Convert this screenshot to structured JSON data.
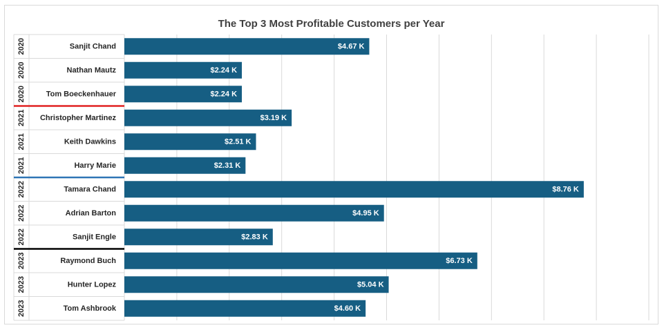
{
  "chart_data": {
    "type": "bar",
    "orientation": "horizontal",
    "title": "The Top 3 Most Profitable Customers per Year",
    "xlim": [
      0,
      10
    ],
    "grid": true,
    "bar_color": "#165E83",
    "categories": [
      {
        "year": "2020",
        "customer": "Sanjit Chand"
      },
      {
        "year": "2020",
        "customer": "Nathan Mautz"
      },
      {
        "year": "2020",
        "customer": "Tom Boeckenhauer"
      },
      {
        "year": "2021",
        "customer": "Christopher Martinez"
      },
      {
        "year": "2021",
        "customer": "Keith Dawkins"
      },
      {
        "year": "2021",
        "customer": "Harry Marie"
      },
      {
        "year": "2022",
        "customer": "Tamara Chand"
      },
      {
        "year": "2022",
        "customer": "Adrian Barton"
      },
      {
        "year": "2022",
        "customer": "Sanjit Engle"
      },
      {
        "year": "2023",
        "customer": "Raymond Buch"
      },
      {
        "year": "2023",
        "customer": "Hunter Lopez"
      },
      {
        "year": "2023",
        "customer": "Tom Ashbrook"
      }
    ],
    "values": [
      4.67,
      2.24,
      2.24,
      3.19,
      2.51,
      2.31,
      8.76,
      4.95,
      2.83,
      6.73,
      5.04,
      4.6
    ],
    "data_labels": [
      "$4.67 K",
      "$2.24 K",
      "$2.24 K",
      "$3.19 K",
      "$2.51 K",
      "$2.31 K",
      "$8.76 K",
      "$4.95 K",
      "$2.83 K",
      "$6.73 K",
      "$5.04 K",
      "$4.60 K"
    ],
    "year_separators": [
      {
        "after_year": "2020",
        "color": "#e02020"
      },
      {
        "after_year": "2021",
        "color": "#2e75b6"
      },
      {
        "after_year": "2022",
        "color": "#000000"
      }
    ]
  }
}
